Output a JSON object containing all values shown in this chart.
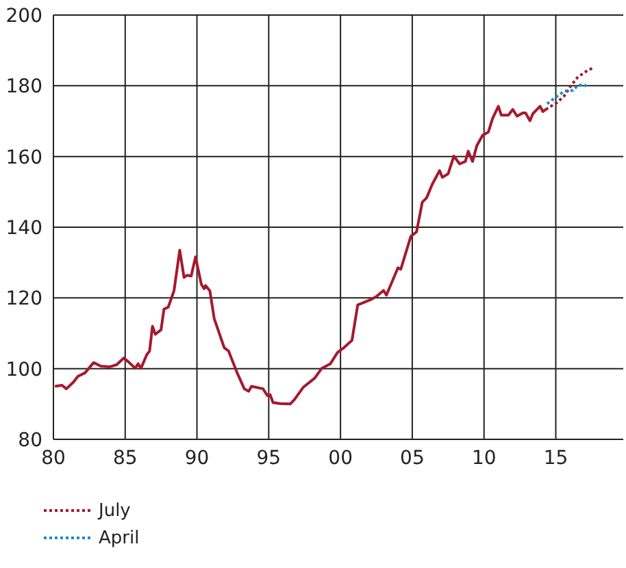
{
  "chart_data": {
    "type": "line",
    "xlim": [
      1980,
      2019.7
    ],
    "xticks": [
      {
        "value": 1980,
        "label": "80"
      },
      {
        "value": 1985,
        "label": "85"
      },
      {
        "value": 1990,
        "label": "90"
      },
      {
        "value": 1995,
        "label": "95"
      },
      {
        "value": 2000,
        "label": "00"
      },
      {
        "value": 2005,
        "label": "05"
      },
      {
        "value": 2010,
        "label": "10"
      },
      {
        "value": 2015,
        "label": "15"
      }
    ],
    "ylim": [
      80,
      200
    ],
    "yticks": [
      80,
      100,
      120,
      140,
      160,
      180,
      200
    ],
    "grid": true,
    "legend": "bottom left",
    "marker": "none",
    "series": [
      {
        "color": "#a6192e",
        "line_style": "solid",
        "x": [
          1980.1,
          1980.6,
          1980.9,
          1981.4,
          1981.7,
          1982.2,
          1982.8,
          1983.3,
          1983.9,
          1984.4,
          1984.9,
          1985.2,
          1985.7,
          1985.9,
          1986.1,
          1986.5,
          1986.7,
          1986.9,
          1987.1,
          1987.5,
          1987.7,
          1988.0,
          1988.4,
          1988.8,
          1989.1,
          1989.3,
          1989.6,
          1989.9,
          1990.3,
          1990.5,
          1990.6,
          1990.9,
          1991.2,
          1991.9,
          1992.2,
          1992.8,
          1993.3,
          1993.6,
          1993.8,
          1994.6,
          1994.9,
          1995.1,
          1995.3,
          1995.8,
          1996.5,
          1996.8,
          1997.4,
          1998.2,
          1998.7,
          1999.3,
          1999.8,
          2000.2,
          2000.8,
          2001.2,
          2002.1,
          2002.5,
          2003.0,
          2003.2,
          2004.0,
          2004.2,
          2004.9,
          2005.3,
          2005.7,
          2006.0,
          2006.4,
          2006.9,
          2007.1,
          2007.5,
          2007.9,
          2008.3,
          2008.7,
          2008.9,
          2009.2,
          2009.5,
          2009.9,
          2010.3,
          2010.6,
          2011.0,
          2011.2,
          2011.7,
          2012.0,
          2012.3,
          2012.7,
          2012.9,
          2013.2,
          2013.4,
          2013.9,
          2014.1,
          2014.3
        ],
        "values": [
          95.0,
          95.3,
          94.3,
          96.2,
          97.8,
          98.8,
          101.7,
          100.7,
          100.5,
          101.1,
          103.0,
          102.0,
          100.1,
          101.4,
          100.1,
          103.9,
          105.0,
          112.0,
          109.7,
          111.0,
          116.8,
          117.4,
          122.0,
          133.5,
          125.8,
          126.4,
          126.2,
          131.6,
          123.9,
          122.6,
          123.5,
          122.0,
          114.2,
          105.9,
          105.0,
          98.8,
          94.3,
          93.6,
          95.0,
          94.3,
          92.4,
          92.6,
          90.4,
          90.1,
          90.0,
          91.3,
          94.7,
          97.3,
          100.1,
          101.4,
          104.6,
          105.8,
          108.0,
          118.0,
          119.5,
          120.4,
          122.1,
          120.8,
          128.5,
          128.1,
          137.4,
          138.7,
          147.1,
          148.3,
          152.2,
          156.0,
          154.1,
          155.1,
          160.1,
          157.9,
          158.6,
          161.5,
          158.6,
          163.1,
          166.0,
          166.9,
          170.8,
          174.2,
          171.7,
          171.7,
          173.3,
          171.4,
          172.3,
          172.3,
          170.1,
          172.1,
          174.2,
          172.7,
          173.3
        ]
      },
      {
        "name": "July",
        "color": "#a6192e",
        "line_style": "dotted",
        "x": [
          2014.3,
          2015.1,
          2015.6,
          2016.0,
          2016.5,
          2017.0,
          2017.6
        ],
        "values": [
          173.3,
          175.3,
          177.2,
          179.7,
          182.3,
          183.8,
          185.1
        ]
      },
      {
        "name": "April",
        "color": "#1a8ad4",
        "line_style": "dotted",
        "x": [
          2014.4,
          2014.9,
          2015.6,
          2016.2,
          2016.5,
          2017.0,
          2017.2
        ],
        "values": [
          174.9,
          176.5,
          178.5,
          178.7,
          180.0,
          180.4,
          179.4
        ]
      }
    ]
  }
}
